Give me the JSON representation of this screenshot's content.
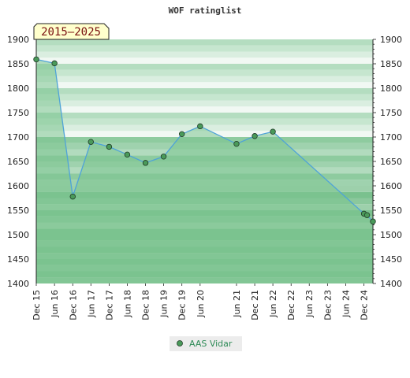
{
  "chart_data": {
    "type": "line",
    "title": "WOF ratinglist",
    "period_label": "2015–2025",
    "ylim": [
      1400,
      1900
    ],
    "yticks": [
      1400,
      1450,
      1500,
      1550,
      1600,
      1650,
      1700,
      1750,
      1800,
      1850,
      1900
    ],
    "x_range": [
      "2015-12-01",
      "2025-03-01"
    ],
    "x_ticks": [
      {
        "label": "Dec 15",
        "date": "2015-12-01"
      },
      {
        "label": "Jun 16",
        "date": "2016-06-01"
      },
      {
        "label": "Dec 16",
        "date": "2016-12-01"
      },
      {
        "label": "Jun 17",
        "date": "2017-06-01"
      },
      {
        "label": "Dec 17",
        "date": "2017-12-01"
      },
      {
        "label": "Jun 18",
        "date": "2018-06-01"
      },
      {
        "label": "Dec 18",
        "date": "2018-12-01"
      },
      {
        "label": "Jun 19",
        "date": "2019-06-01"
      },
      {
        "label": "Dec 19",
        "date": "2019-12-01"
      },
      {
        "label": "Jun 20",
        "date": "2020-06-01"
      },
      {
        "label": "Jun 21",
        "date": "2021-06-01"
      },
      {
        "label": "Dec 21",
        "date": "2021-12-01"
      },
      {
        "label": "Jun 22",
        "date": "2022-06-01"
      },
      {
        "label": "Dec 22",
        "date": "2022-12-01"
      },
      {
        "label": "Jun 23",
        "date": "2023-06-01"
      },
      {
        "label": "Dec 23",
        "date": "2023-12-01"
      },
      {
        "label": "Jun 24",
        "date": "2024-06-01"
      },
      {
        "label": "Dec 24",
        "date": "2024-12-01"
      }
    ],
    "series": [
      {
        "name": "AAS Vidar",
        "color": "#4a9a5a",
        "line_color": "#4fa3d8",
        "points": [
          {
            "x": "2015-12-01",
            "y": 1859
          },
          {
            "x": "2016-06-01",
            "y": 1851
          },
          {
            "x": "2016-12-01",
            "y": 1578
          },
          {
            "x": "2017-06-01",
            "y": 1690
          },
          {
            "x": "2017-12-01",
            "y": 1680
          },
          {
            "x": "2018-06-01",
            "y": 1664
          },
          {
            "x": "2018-12-01",
            "y": 1647
          },
          {
            "x": "2019-06-01",
            "y": 1660
          },
          {
            "x": "2019-12-01",
            "y": 1706
          },
          {
            "x": "2020-06-01",
            "y": 1722
          },
          {
            "x": "2021-06-01",
            "y": 1686
          },
          {
            "x": "2021-12-01",
            "y": 1702
          },
          {
            "x": "2022-06-01",
            "y": 1711
          },
          {
            "x": "2024-12-01",
            "y": 1543
          },
          {
            "x": "2025-01-01",
            "y": 1540
          },
          {
            "x": "2025-03-01",
            "y": 1527
          }
        ]
      }
    ],
    "legend_position": "bottom-center",
    "grid": true,
    "band_colors": {
      "ge1700": [
        "#f1f8f3",
        "#daeee0",
        "#c6e6cf",
        "#b4ddc0"
      ],
      "1600_1700": [
        "#b2dbbe",
        "#9fd2ae",
        "#8ecb9f"
      ],
      "1500_1600": [
        "#9dd0ab",
        "#8bc89c",
        "#7ac18e"
      ],
      "lt1500": [
        "#8bc89c",
        "#7ac18e"
      ]
    },
    "fill_color": "#7cc48f",
    "axis_color": "#222222",
    "label_box_bg": "#ffffcc"
  }
}
